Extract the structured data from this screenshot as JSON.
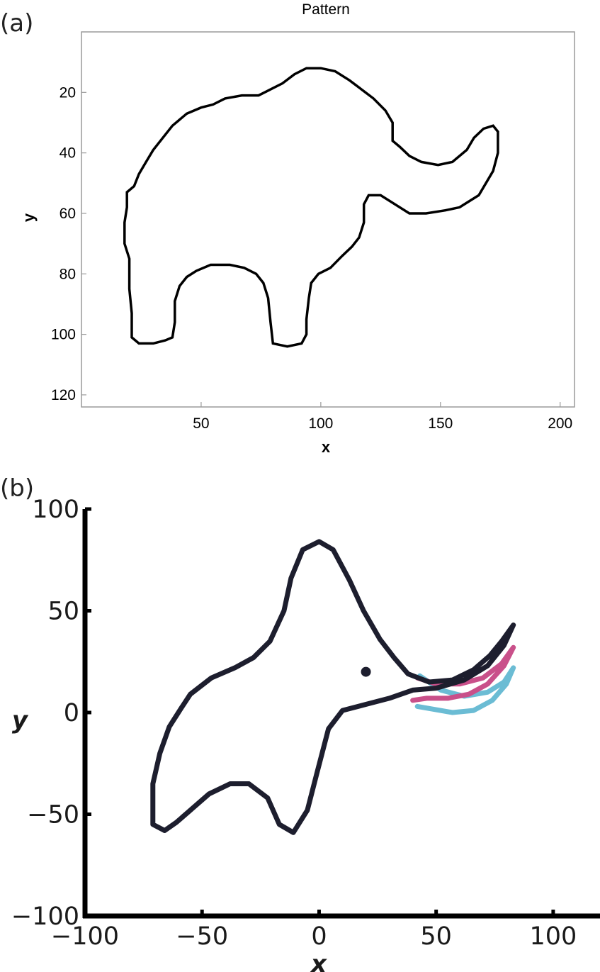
{
  "chart_data": [
    {
      "panel_label": "(a)",
      "type": "line",
      "title": "Pattern",
      "xlabel": "x",
      "ylabel": "y",
      "xlim": [
        0,
        206
      ],
      "ylim": [
        124,
        0
      ],
      "y_axis_inverted": true,
      "xticks": [
        50,
        100,
        150,
        200
      ],
      "yticks": [
        20,
        40,
        60,
        80,
        100,
        120
      ],
      "grid": false,
      "box": true,
      "series": [
        {
          "color": "#000000",
          "closed": true,
          "points": [
            [
              21,
              101
            ],
            [
              21,
              93
            ],
            [
              20,
              85
            ],
            [
              20,
              75
            ],
            [
              18,
              70
            ],
            [
              18,
              63
            ],
            [
              19,
              58
            ],
            [
              19,
              53
            ],
            [
              22,
              51
            ],
            [
              24,
              47
            ],
            [
              27,
              43
            ],
            [
              30,
              39
            ],
            [
              34,
              35
            ],
            [
              38,
              31
            ],
            [
              44,
              27
            ],
            [
              50,
              25
            ],
            [
              55,
              24
            ],
            [
              60,
              22
            ],
            [
              67,
              21
            ],
            [
              74,
              21
            ],
            [
              79,
              19
            ],
            [
              84,
              17
            ],
            [
              89,
              14
            ],
            [
              94,
              12
            ],
            [
              100,
              12
            ],
            [
              106,
              13
            ],
            [
              112,
              16
            ],
            [
              117,
              19
            ],
            [
              122,
              22
            ],
            [
              127,
              26
            ],
            [
              130,
              30
            ],
            [
              130,
              36
            ],
            [
              133,
              38
            ],
            [
              137,
              41
            ],
            [
              142,
              43
            ],
            [
              149,
              44
            ],
            [
              155,
              43
            ],
            [
              161,
              39
            ],
            [
              164,
              35
            ],
            [
              168,
              32
            ],
            [
              172,
              31
            ],
            [
              174,
              33
            ],
            [
              174,
              40
            ],
            [
              172,
              46
            ],
            [
              169,
              50
            ],
            [
              166,
              54
            ],
            [
              162,
              56
            ],
            [
              158,
              58
            ],
            [
              152,
              59
            ],
            [
              144,
              60
            ],
            [
              137,
              60
            ],
            [
              131,
              57
            ],
            [
              125,
              54
            ],
            [
              120,
              54
            ],
            [
              118,
              57
            ],
            [
              118,
              63
            ],
            [
              116,
              68
            ],
            [
              113,
              71
            ],
            [
              109,
              74
            ],
            [
              104,
              78
            ],
            [
              99,
              80
            ],
            [
              96,
              83
            ],
            [
              95,
              88
            ],
            [
              94,
              95
            ],
            [
              94,
              100
            ],
            [
              92,
              103
            ],
            [
              86,
              104
            ],
            [
              80,
              103
            ],
            [
              79,
              96
            ],
            [
              78,
              88
            ],
            [
              76,
              83
            ],
            [
              73,
              80
            ],
            [
              68,
              78
            ],
            [
              62,
              77
            ],
            [
              54,
              77
            ],
            [
              48,
              79
            ],
            [
              44,
              81
            ],
            [
              41,
              84
            ],
            [
              39,
              89
            ],
            [
              39,
              96
            ],
            [
              38,
              101
            ],
            [
              35,
              102
            ],
            [
              30,
              103
            ],
            [
              24,
              103
            ],
            [
              21,
              101
            ]
          ]
        }
      ]
    },
    {
      "panel_label": "(b)",
      "type": "line",
      "xlabel": "x",
      "ylabel": "y",
      "xlim": [
        -100,
        120
      ],
      "ylim": [
        -100,
        100
      ],
      "xticks": [
        -100,
        -50,
        0,
        50,
        100
      ],
      "yticks": [
        -100,
        -50,
        0,
        50,
        100
      ],
      "grid": false,
      "marker_point": {
        "x": 20,
        "y": 20,
        "color": "#1d1e2e"
      },
      "series": [
        {
          "color": "#6bbcd4",
          "points": [
            [
              43,
              18
            ],
            [
              52,
              11
            ],
            [
              62,
              8
            ],
            [
              72,
              10
            ],
            [
              79,
              15
            ],
            [
              83,
              22
            ],
            [
              80,
              14
            ],
            [
              74,
              6
            ],
            [
              66,
              1
            ],
            [
              57,
              0
            ],
            [
              47,
              2
            ],
            [
              42,
              3
            ]
          ]
        },
        {
          "color": "#c9508a",
          "points": [
            [
              42,
              17
            ],
            [
              50,
              14
            ],
            [
              60,
              14
            ],
            [
              70,
              17
            ],
            [
              78,
              24
            ],
            [
              83,
              32
            ],
            [
              79,
              23
            ],
            [
              72,
              14
            ],
            [
              64,
              9
            ],
            [
              55,
              7
            ],
            [
              46,
              7
            ],
            [
              40,
              6
            ]
          ]
        },
        {
          "color": "#1d1e2e",
          "closed": true,
          "points": [
            [
              -66,
              -58
            ],
            [
              -71,
              -55
            ],
            [
              -71,
              -35
            ],
            [
              -68,
              -20
            ],
            [
              -64,
              -7
            ],
            [
              -59,
              2
            ],
            [
              -55,
              9
            ],
            [
              -46,
              17
            ],
            [
              -36,
              22
            ],
            [
              -28,
              27
            ],
            [
              -21,
              35
            ],
            [
              -15,
              50
            ],
            [
              -12,
              66
            ],
            [
              -7,
              80
            ],
            [
              0,
              84
            ],
            [
              6,
              80
            ],
            [
              13,
              65
            ],
            [
              19,
              50
            ],
            [
              26,
              36
            ],
            [
              32,
              27
            ],
            [
              38,
              19
            ],
            [
              47,
              15
            ],
            [
              57,
              16
            ],
            [
              66,
              21
            ],
            [
              73,
              28
            ],
            [
              78,
              35
            ],
            [
              83,
              43
            ],
            [
              79,
              33
            ],
            [
              72,
              23
            ],
            [
              62,
              16
            ],
            [
              50,
              12
            ],
            [
              40,
              11
            ],
            [
              30,
              7
            ],
            [
              20,
              4
            ],
            [
              10,
              1
            ],
            [
              4,
              -8
            ],
            [
              -1,
              -30
            ],
            [
              -5,
              -48
            ],
            [
              -11,
              -59
            ],
            [
              -17,
              -55
            ],
            [
              -22,
              -42
            ],
            [
              -30,
              -35
            ],
            [
              -38,
              -35
            ],
            [
              -47,
              -40
            ],
            [
              -55,
              -48
            ],
            [
              -61,
              -54
            ],
            [
              -66,
              -58
            ]
          ]
        }
      ]
    }
  ]
}
